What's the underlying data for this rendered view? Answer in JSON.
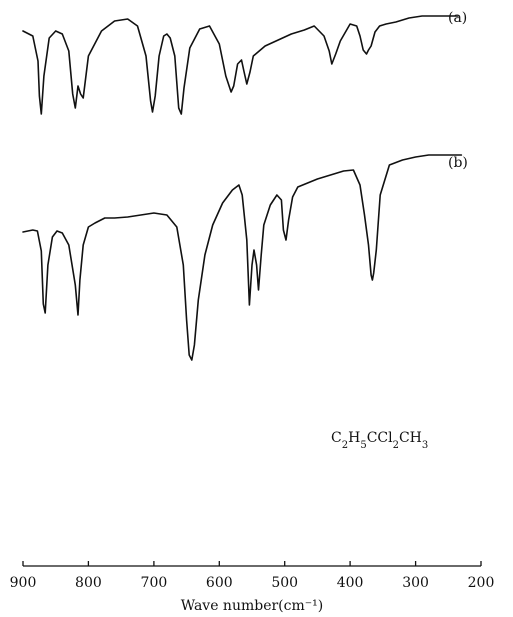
{
  "chart_data": {
    "type": "line",
    "xlabel": "Wave number(cm⁻¹)",
    "xlim": [
      900,
      200
    ],
    "x_ticks": [
      900,
      800,
      700,
      600,
      500,
      400,
      300,
      200
    ],
    "x_tick_labels": [
      "900",
      "800",
      "700",
      "600",
      "500",
      "400",
      "300",
      "200"
    ],
    "annotation": {
      "parts": [
        {
          "t": "C",
          "sub": false
        },
        {
          "t": "2",
          "sub": true
        },
        {
          "t": "H",
          "sub": false
        },
        {
          "t": "5",
          "sub": true
        },
        {
          "t": "CCl",
          "sub": false
        },
        {
          "t": "2",
          "sub": true
        },
        {
          "t": "CH",
          "sub": false
        },
        {
          "t": "3",
          "sub": true
        }
      ]
    },
    "series": [
      {
        "name": "(a)",
        "x": [
          900,
          885,
          877,
          875,
          872,
          868,
          860,
          850,
          840,
          830,
          824,
          820,
          816,
          812,
          808,
          800,
          780,
          760,
          740,
          725,
          712,
          705,
          702,
          698,
          692,
          685,
          680,
          675,
          668,
          662,
          658,
          654,
          645,
          630,
          615,
          600,
          590,
          582,
          578,
          572,
          566,
          562,
          558,
          553,
          548,
          530,
          510,
          490,
          470,
          455,
          440,
          432,
          428,
          422,
          415,
          400,
          390,
          385,
          380,
          375,
          372,
          368,
          362,
          355,
          345,
          330,
          310,
          290,
          270,
          250,
          235
        ],
        "y": [
          15,
          20,
          45,
          80,
          98,
          60,
          22,
          15,
          18,
          35,
          78,
          92,
          70,
          78,
          82,
          40,
          15,
          5,
          3,
          10,
          40,
          85,
          96,
          80,
          40,
          20,
          18,
          22,
          40,
          92,
          98,
          72,
          32,
          13,
          10,
          28,
          60,
          76,
          70,
          48,
          44,
          56,
          68,
          56,
          40,
          30,
          24,
          18,
          14,
          10,
          20,
          35,
          48,
          38,
          25,
          8,
          10,
          20,
          34,
          38,
          34,
          30,
          16,
          10,
          8,
          6,
          2,
          0,
          0,
          0,
          0
        ]
      },
      {
        "name": "(b)",
        "x": [
          900,
          885,
          878,
          872,
          869,
          866,
          862,
          855,
          848,
          840,
          830,
          820,
          816,
          813,
          808,
          800,
          790,
          775,
          760,
          740,
          720,
          700,
          680,
          665,
          655,
          650,
          646,
          642,
          638,
          632,
          622,
          610,
          595,
          580,
          570,
          565,
          558,
          554,
          550,
          547,
          543,
          540,
          536,
          532,
          522,
          512,
          505,
          502,
          498,
          494,
          488,
          480,
          465,
          450,
          430,
          410,
          395,
          385,
          378,
          372,
          368,
          366,
          364,
          360,
          354,
          340,
          320,
          300,
          280,
          260,
          240,
          230
        ],
        "y": [
          77,
          75,
          76,
          96,
          149,
          158,
          110,
          82,
          76,
          78,
          90,
          130,
          160,
          125,
          90,
          72,
          68,
          63,
          63,
          62,
          60,
          58,
          60,
          72,
          110,
          165,
          200,
          205,
          190,
          145,
          100,
          70,
          48,
          35,
          30,
          40,
          85,
          150,
          110,
          95,
          110,
          135,
          100,
          70,
          50,
          40,
          45,
          75,
          85,
          65,
          42,
          32,
          28,
          24,
          20,
          16,
          15,
          30,
          60,
          90,
          120,
          125,
          118,
          95,
          40,
          10,
          5,
          2,
          0,
          0,
          0,
          0
        ]
      }
    ],
    "color": "#111111"
  }
}
